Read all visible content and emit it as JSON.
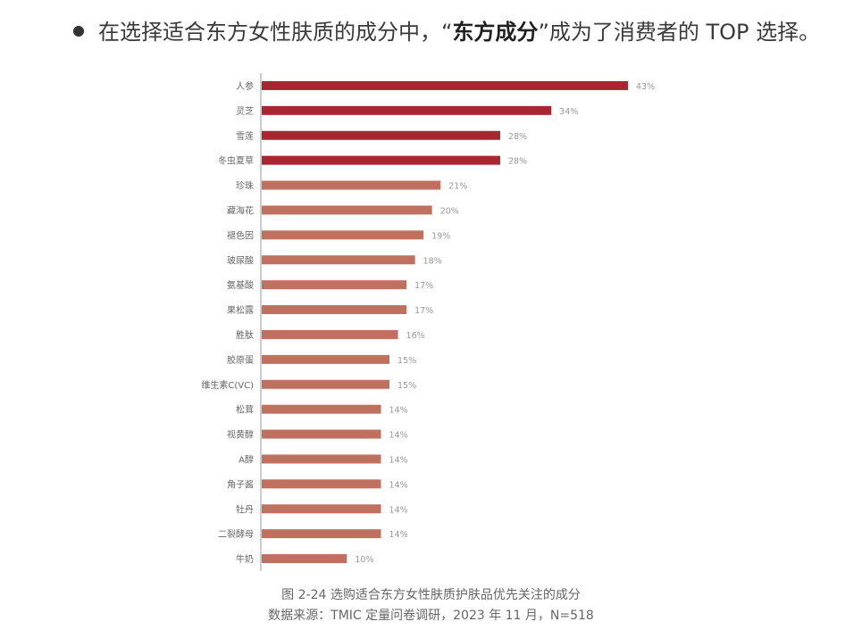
{
  "intro": {
    "pre": "在选择适合东方女性肤质的成分中，",
    "quote_open": "“",
    "bold": "东方成分",
    "quote_close": "”",
    "post": "成为了消费者的 TOP 选择。"
  },
  "caption": {
    "title": "图 2-24 选购适合东方女性肤质护肤品优先关注的成分",
    "source": "数据来源：TMIC 定量问卷调研，2023 年 11 月，N=518"
  },
  "colors": {
    "highlight": "#a92530",
    "normal": "#c0705f",
    "axis": "#999999",
    "label": "#666666",
    "value_label": "#999999"
  },
  "chart_data": {
    "type": "bar",
    "orientation": "horizontal",
    "categories": [
      "人参",
      "灵芝",
      "雪莲",
      "冬虫夏草",
      "珍珠",
      "藏海花",
      "褪色因",
      "玻尿酸",
      "氨基酸",
      "果松露",
      "胜肽",
      "胶原蛋",
      "维生素C(VC)",
      "松茸",
      "视黄醇",
      "A醇",
      "角子酱",
      "牡丹",
      "二裂酵母",
      "牛奶"
    ],
    "values": [
      43,
      34,
      28,
      28,
      21,
      20,
      19,
      18,
      17,
      17,
      16,
      15,
      15,
      14,
      14,
      14,
      14,
      14,
      14,
      10
    ],
    "value_labels": [
      "43%",
      "34%",
      "28%",
      "28%",
      "21%",
      "20%",
      "19%",
      "18%",
      "17%",
      "17%",
      "16%",
      "15%",
      "15%",
      "14%",
      "14%",
      "14%",
      "14%",
      "14%",
      "14%",
      "10%"
    ],
    "highlighted_count": 4,
    "xlim": [
      0,
      45
    ],
    "grid": false,
    "legend": "none"
  }
}
